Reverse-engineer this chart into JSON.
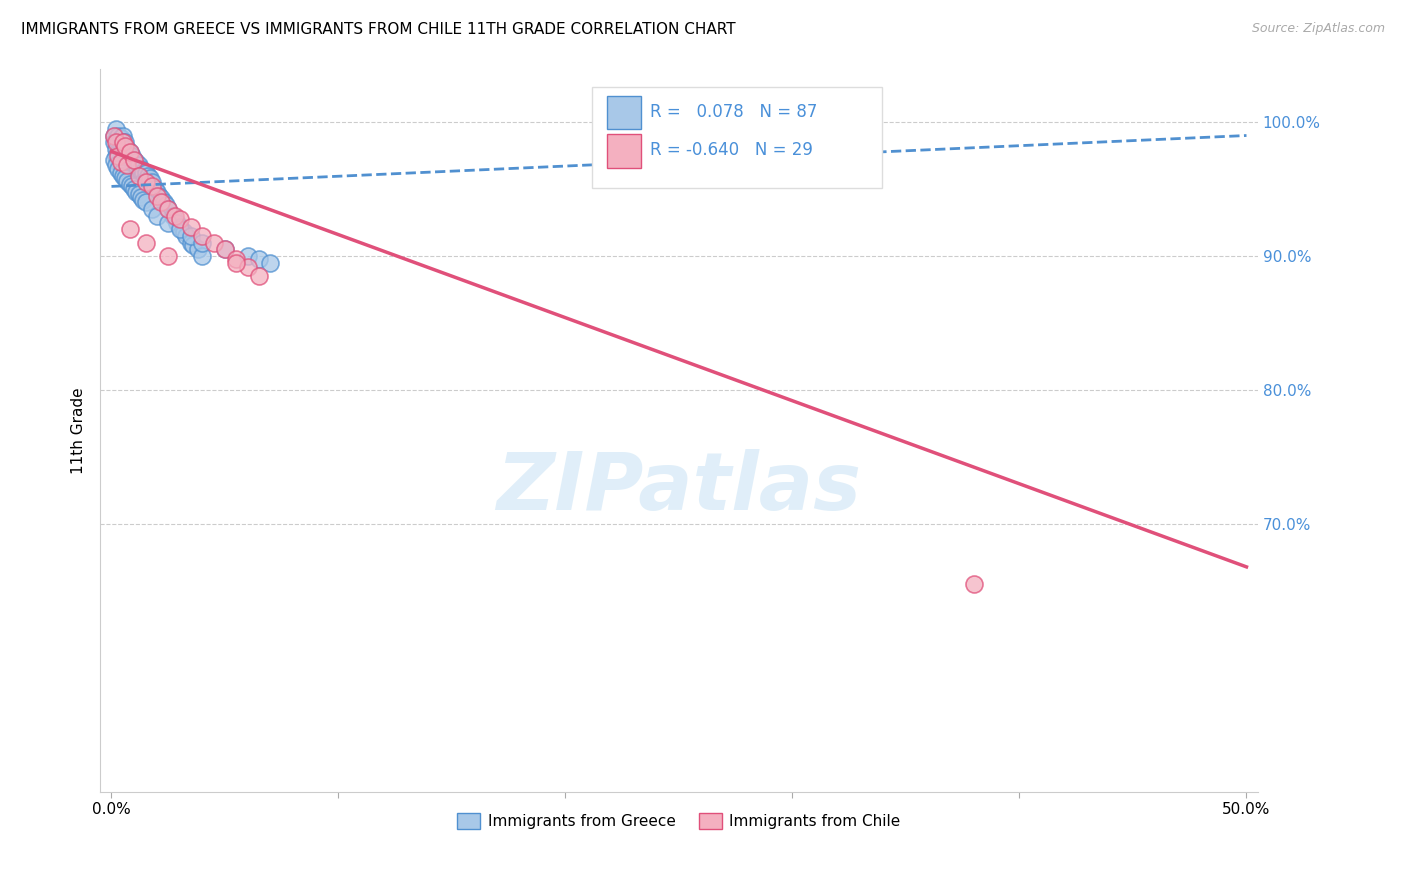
{
  "title": "IMMIGRANTS FROM GREECE VS IMMIGRANTS FROM CHILE 11TH GRADE CORRELATION CHART",
  "source": "Source: ZipAtlas.com",
  "ylabel": "11th Grade",
  "y_ticks": [
    0.7,
    0.8,
    0.9,
    1.0
  ],
  "y_tick_labels": [
    "70.0%",
    "80.0%",
    "90.0%",
    "100.0%"
  ],
  "x_ticks": [
    0.0,
    0.1,
    0.2,
    0.3,
    0.4,
    0.5
  ],
  "x_tick_labels": [
    "0.0%",
    "",
    "",
    "",
    "",
    "50.0%"
  ],
  "xlim": [
    -0.005,
    0.505
  ],
  "ylim": [
    0.5,
    1.04
  ],
  "legend_R_greece": " 0.078",
  "legend_N_greece": "87",
  "legend_R_chile": "-0.640",
  "legend_N_chile": "29",
  "color_greece": "#a8c8e8",
  "color_chile": "#f4b0c0",
  "color_greece_line": "#5090d0",
  "color_chile_line": "#e0507a",
  "color_text_blue": "#4a90d9",
  "watermark": "ZIPatlas",
  "greece_scatter_x": [
    0.001,
    0.001,
    0.002,
    0.002,
    0.002,
    0.003,
    0.003,
    0.003,
    0.003,
    0.004,
    0.004,
    0.004,
    0.004,
    0.005,
    0.005,
    0.005,
    0.005,
    0.006,
    0.006,
    0.006,
    0.007,
    0.007,
    0.007,
    0.008,
    0.008,
    0.008,
    0.009,
    0.009,
    0.01,
    0.01,
    0.01,
    0.011,
    0.011,
    0.012,
    0.012,
    0.013,
    0.013,
    0.014,
    0.014,
    0.015,
    0.015,
    0.016,
    0.016,
    0.017,
    0.017,
    0.018,
    0.019,
    0.02,
    0.021,
    0.022,
    0.023,
    0.024,
    0.025,
    0.027,
    0.029,
    0.03,
    0.032,
    0.033,
    0.035,
    0.036,
    0.038,
    0.04,
    0.001,
    0.002,
    0.003,
    0.004,
    0.005,
    0.006,
    0.007,
    0.008,
    0.009,
    0.01,
    0.011,
    0.012,
    0.013,
    0.014,
    0.015,
    0.018,
    0.02,
    0.025,
    0.03,
    0.035,
    0.04,
    0.05,
    0.06,
    0.065,
    0.07
  ],
  "greece_scatter_y": [
    0.99,
    0.985,
    0.98,
    0.975,
    0.995,
    0.99,
    0.985,
    0.975,
    0.97,
    0.988,
    0.982,
    0.978,
    0.972,
    0.99,
    0.985,
    0.978,
    0.97,
    0.985,
    0.978,
    0.972,
    0.98,
    0.975,
    0.968,
    0.978,
    0.972,
    0.965,
    0.975,
    0.968,
    0.972,
    0.965,
    0.958,
    0.97,
    0.962,
    0.968,
    0.96,
    0.965,
    0.958,
    0.963,
    0.955,
    0.962,
    0.955,
    0.96,
    0.952,
    0.958,
    0.95,
    0.955,
    0.95,
    0.948,
    0.945,
    0.943,
    0.94,
    0.938,
    0.935,
    0.93,
    0.925,
    0.922,
    0.918,
    0.915,
    0.91,
    0.908,
    0.905,
    0.9,
    0.972,
    0.968,
    0.965,
    0.962,
    0.96,
    0.958,
    0.956,
    0.954,
    0.952,
    0.95,
    0.948,
    0.946,
    0.944,
    0.942,
    0.94,
    0.935,
    0.93,
    0.925,
    0.92,
    0.915,
    0.91,
    0.905,
    0.9,
    0.898,
    0.895
  ],
  "chile_scatter_x": [
    0.001,
    0.002,
    0.003,
    0.004,
    0.005,
    0.006,
    0.007,
    0.008,
    0.01,
    0.012,
    0.015,
    0.018,
    0.02,
    0.022,
    0.025,
    0.028,
    0.03,
    0.035,
    0.04,
    0.045,
    0.05,
    0.055,
    0.06,
    0.065,
    0.008,
    0.015,
    0.025,
    0.055,
    0.38
  ],
  "chile_scatter_y": [
    0.99,
    0.985,
    0.975,
    0.97,
    0.985,
    0.982,
    0.968,
    0.978,
    0.972,
    0.96,
    0.955,
    0.952,
    0.945,
    0.94,
    0.935,
    0.93,
    0.928,
    0.922,
    0.915,
    0.91,
    0.905,
    0.898,
    0.892,
    0.885,
    0.92,
    0.91,
    0.9,
    0.895,
    0.655
  ],
  "greece_trend_x": [
    0.0,
    0.5
  ],
  "greece_trend_y": [
    0.952,
    0.99
  ],
  "chile_trend_x": [
    0.0,
    0.5
  ],
  "chile_trend_y": [
    0.978,
    0.668
  ]
}
